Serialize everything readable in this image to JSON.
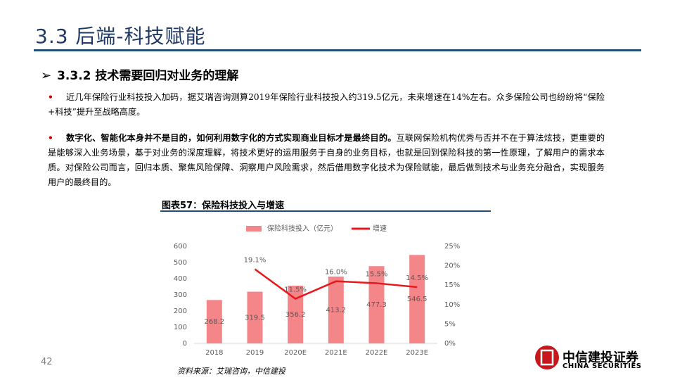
{
  "slide": {
    "title": "3.3 后端-科技赋能",
    "subtitle": "3.3.2 技术需要回归对业务的理解",
    "bullets": [
      {
        "bold": "",
        "text": "近几年保险行业科技投入加码，据艾瑞咨询测算2019年保险行业科技投入约319.5亿元，未来增速在14%左右。众多保险公司也纷纷将“保险+科技”提升至战略高度。"
      },
      {
        "bold": "数字化、智能化本身并不是目的，如何利用数字化的方式实现商业目标才是最终目的。",
        "text": "互联网保险机构优秀与否并不在于算法炫技，更重要的是能够深入业务场景，基于对业务的深度理解，将技术更好的运用服务于自身的业务目标，也就是回到保险科技的第一性原理，了解用户的需求本质。对保险公司而言，回归本质、聚焦风险保障、洞察用户风险需求，然后借用数字化技术为保险赋能，最后做到技术与业务充分融合，实现服务用户的最终目的。"
      }
    ],
    "page_number": "42",
    "source": "资料来源：艾瑞咨询，中信建投",
    "logo_cn": "中信建投证券",
    "logo_en": "CHINA SECURITIES"
  },
  "chart_data": {
    "type": "bar-line",
    "title": "图表57：保险科技投入与增速",
    "categories": [
      "2018",
      "2019",
      "2020E",
      "2021E",
      "2022E",
      "2023E"
    ],
    "series": [
      {
        "name": "保险科技投入（亿元）",
        "type": "bar",
        "axis": "y",
        "color": "#f4868a",
        "values": [
          268.2,
          319.5,
          356.2,
          413.2,
          477.3,
          546.5
        ]
      },
      {
        "name": "增速",
        "type": "line",
        "axis": "y2",
        "color": "#e8191d",
        "values": [
          null,
          19.1,
          11.5,
          16.0,
          15.5,
          14.5
        ],
        "value_labels": [
          null,
          "19.1%",
          "11.5%",
          "16.0%",
          "15.5%",
          "14.5%"
        ]
      }
    ],
    "ylim": [
      0,
      600
    ],
    "yticks": [
      0,
      100,
      200,
      300,
      400,
      500,
      600
    ],
    "y2lim": [
      0,
      25
    ],
    "y2ticks": [
      {
        "value": 0,
        "label": "0%"
      },
      {
        "value": 5,
        "label": "5%"
      },
      {
        "value": 10,
        "label": "10%"
      },
      {
        "value": 15,
        "label": "15%"
      },
      {
        "value": 20,
        "label": "20%"
      },
      {
        "value": 25,
        "label": "25%"
      }
    ],
    "legend": "top"
  }
}
